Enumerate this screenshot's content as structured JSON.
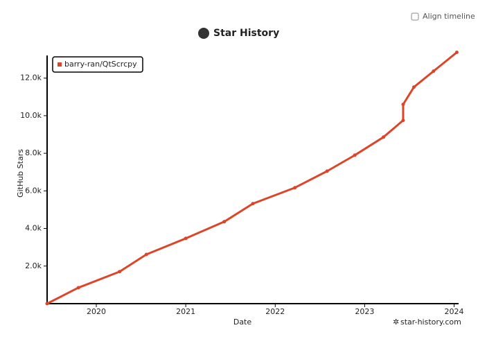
{
  "align_timeline": "Align timeline",
  "chart_data": {
    "type": "line",
    "title": "Star History",
    "xlabel": "Date",
    "ylabel": "GitHub Stars",
    "watermark": "star-history.com",
    "x": [
      2019.45,
      2019.8,
      2020.26,
      2020.56,
      2021.0,
      2021.43,
      2021.75,
      2022.22,
      2022.58,
      2022.89,
      2023.21,
      2023.43,
      2023.43,
      2023.55,
      2023.77,
      2024.03
    ],
    "series": [
      {
        "name": "barry-ran/QtScrcpy",
        "color": "#dd4528",
        "values": [
          0,
          850,
          1700,
          2620,
          3470,
          4360,
          5320,
          6170,
          7050,
          7900,
          8860,
          9750,
          10600,
          11520,
          12370,
          13370
        ]
      }
    ],
    "xlim": [
      2019.45,
      2024.05
    ],
    "xticks": [
      2020,
      2021,
      2022,
      2023,
      2024
    ],
    "ylim": [
      0,
      13500
    ],
    "yticks": [
      {
        "value": 2000,
        "label": "2.0k"
      },
      {
        "value": 4000,
        "label": "4.0k"
      },
      {
        "value": 6000,
        "label": "6.0k"
      },
      {
        "value": 8000,
        "label": "8.0k"
      },
      {
        "value": 10000,
        "label": "10.0k"
      },
      {
        "value": 12000,
        "label": "12.0k"
      }
    ],
    "legend": "top-left",
    "grid": false
  }
}
